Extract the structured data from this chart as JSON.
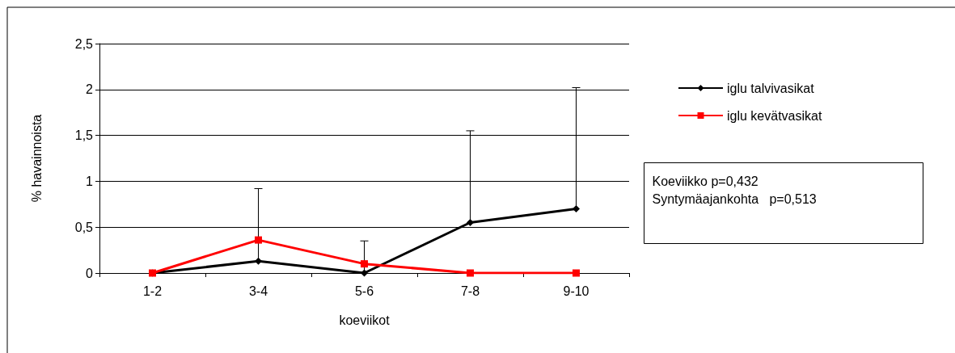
{
  "chart_data": {
    "type": "line",
    "xlabel": "koeviikot",
    "ylabel": "% havainnoista",
    "categories": [
      "1-2",
      "3-4",
      "5-6",
      "7-8",
      "9-10"
    ],
    "series": [
      {
        "name": "iglu talvivasikat",
        "color": "#000000",
        "marker": "diamond",
        "values": [
          0,
          0.13,
          0,
          0.55,
          0.7
        ],
        "errors": [
          null,
          [
            0.13,
            0.92
          ],
          [
            0,
            0.35
          ],
          [
            0.55,
            1.55
          ],
          [
            0.7,
            2.02
          ]
        ]
      },
      {
        "name": "iglu kevätvasikat",
        "color": "#ff0000",
        "marker": "square",
        "values": [
          0,
          0.36,
          0.1,
          0,
          0
        ]
      }
    ],
    "ylim": [
      0,
      2.5
    ],
    "yticks": [
      0,
      {
        "value": 0.5,
        "label": "0,5"
      },
      1,
      {
        "value": 1.5,
        "label": "1,5"
      },
      2,
      {
        "value": 2.5,
        "label": "2,5"
      }
    ],
    "grid": "y",
    "legend": "right",
    "line_style": "solid",
    "annotations": [
      "Koeviikko p=0,432\nSyntymäajankohta   p=0,513"
    ]
  }
}
